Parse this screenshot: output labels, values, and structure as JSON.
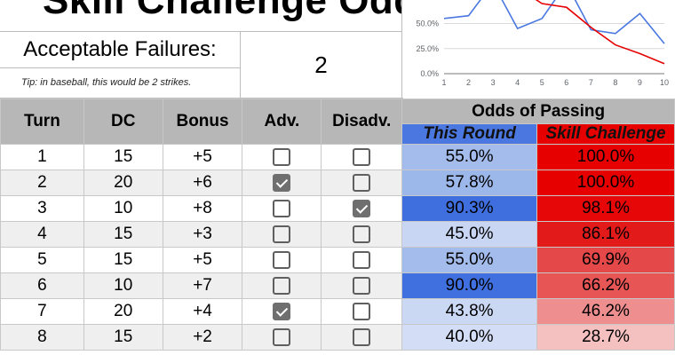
{
  "title": "Skill Challenge Odds",
  "acceptable_failures": {
    "label": "Acceptable Failures:",
    "value": "2",
    "tip": "Tip: in baseball, this would be 2 strikes."
  },
  "table": {
    "headers": [
      "Turn",
      "DC",
      "Bonus",
      "Adv.",
      "Disadv."
    ],
    "odds_header": "Odds of Passing",
    "this_round_header": "This Round",
    "skill_challenge_header": "Skill Challenge",
    "rows": [
      {
        "turn": "1",
        "dc": "15",
        "bonus": "+5",
        "adv": false,
        "disadv": false,
        "this_round": "55.0%",
        "skill_challenge": "100.0%",
        "this_round_color": "#a3bcec",
        "skill_color": "#e60000"
      },
      {
        "turn": "2",
        "dc": "20",
        "bonus": "+6",
        "adv": true,
        "disadv": false,
        "this_round": "57.8%",
        "skill_challenge": "100.0%",
        "this_round_color": "#9cb7ea",
        "skill_color": "#e60000"
      },
      {
        "turn": "3",
        "dc": "10",
        "bonus": "+8",
        "adv": false,
        "disadv": true,
        "this_round": "90.3%",
        "skill_challenge": "98.1%",
        "this_round_color": "#3f6fdf",
        "skill_color": "#e60808"
      },
      {
        "turn": "4",
        "dc": "15",
        "bonus": "+3",
        "adv": false,
        "disadv": false,
        "this_round": "45.0%",
        "skill_challenge": "86.1%",
        "this_round_color": "#c8d6f3",
        "skill_color": "#e21a1a"
      },
      {
        "turn": "5",
        "dc": "15",
        "bonus": "+5",
        "adv": false,
        "disadv": false,
        "this_round": "55.0%",
        "skill_challenge": "69.9%",
        "this_round_color": "#a3bcec",
        "skill_color": "#e54848"
      },
      {
        "turn": "6",
        "dc": "10",
        "bonus": "+7",
        "adv": false,
        "disadv": false,
        "this_round": "90.0%",
        "skill_challenge": "66.2%",
        "this_round_color": "#4070df",
        "skill_color": "#e75555"
      },
      {
        "turn": "7",
        "dc": "20",
        "bonus": "+4",
        "adv": true,
        "disadv": false,
        "this_round": "43.8%",
        "skill_challenge": "46.2%",
        "this_round_color": "#cbd8f4",
        "skill_color": "#ef8e8e"
      },
      {
        "turn": "8",
        "dc": "15",
        "bonus": "+2",
        "adv": false,
        "disadv": false,
        "this_round": "40.0%",
        "skill_challenge": "28.7%",
        "this_round_color": "#d3def6",
        "skill_color": "#f5c0c0"
      }
    ]
  },
  "chart_data": {
    "type": "line",
    "x": [
      1,
      2,
      3,
      4,
      5,
      6,
      7,
      8,
      9,
      10
    ],
    "series": [
      {
        "name": "This Round",
        "color": "#4a78e0",
        "values": [
          55.0,
          57.8,
          90.3,
          45.0,
          55.0,
          90.0,
          43.8,
          40.0,
          60.0,
          30.0
        ]
      },
      {
        "name": "Skill Challenge",
        "color": "#e60000",
        "values": [
          100.0,
          100.0,
          98.1,
          86.1,
          69.9,
          66.2,
          46.2,
          28.7,
          20.0,
          10.0
        ]
      }
    ],
    "y_ticks": [
      "0.0%",
      "25.0%",
      "50.0%"
    ],
    "x_ticks": [
      "1",
      "2",
      "3",
      "4",
      "5",
      "6",
      "7",
      "8",
      "9",
      "10"
    ],
    "ylim": [
      0,
      100
    ],
    "xlim": [
      1,
      10
    ]
  }
}
